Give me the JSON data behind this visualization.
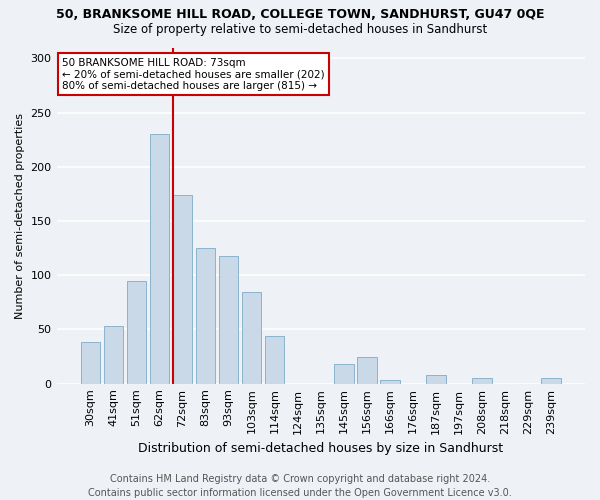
{
  "title1": "50, BRANKSOME HILL ROAD, COLLEGE TOWN, SANDHURST, GU47 0QE",
  "title2": "Size of property relative to semi-detached houses in Sandhurst",
  "xlabel": "Distribution of semi-detached houses by size in Sandhurst",
  "ylabel": "Number of semi-detached properties",
  "categories": [
    "30sqm",
    "41sqm",
    "51sqm",
    "62sqm",
    "72sqm",
    "83sqm",
    "93sqm",
    "103sqm",
    "114sqm",
    "124sqm",
    "135sqm",
    "145sqm",
    "156sqm",
    "166sqm",
    "176sqm",
    "187sqm",
    "197sqm",
    "208sqm",
    "218sqm",
    "229sqm",
    "239sqm"
  ],
  "values": [
    38,
    53,
    95,
    230,
    174,
    125,
    118,
    85,
    44,
    0,
    0,
    18,
    25,
    3,
    0,
    8,
    0,
    5,
    0,
    0,
    5
  ],
  "bar_color": "#c9d9e8",
  "bar_edge_color": "#8ab4cc",
  "vline_index": 4,
  "annotation_text": "50 BRANKSOME HILL ROAD: 73sqm\n← 20% of semi-detached houses are smaller (202)\n80% of semi-detached houses are larger (815) →",
  "annotation_box_color": "#ffffff",
  "annotation_box_edge": "#cc0000",
  "vline_color": "#cc0000",
  "footer": "Contains HM Land Registry data © Crown copyright and database right 2024.\nContains public sector information licensed under the Open Government Licence v3.0.",
  "ylim": [
    0,
    310
  ],
  "background_color": "#eef2f7",
  "grid_color": "#ffffff",
  "title1_fontsize": 9,
  "title2_fontsize": 8.5,
  "xlabel_fontsize": 9,
  "ylabel_fontsize": 8,
  "tick_fontsize": 8,
  "footer_fontsize": 7,
  "annot_fontsize": 7.5
}
